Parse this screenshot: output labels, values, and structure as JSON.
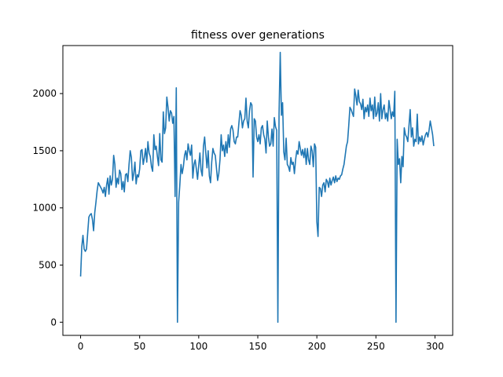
{
  "chart_data": {
    "type": "line",
    "title": "fitness over generations",
    "xlabel": "",
    "ylabel": "",
    "xlim": [
      -15,
      315
    ],
    "ylim": [
      -115,
      2420
    ],
    "xticks": [
      0,
      50,
      100,
      150,
      200,
      250,
      300
    ],
    "yticks": [
      0,
      500,
      1000,
      1500,
      2000
    ],
    "grid": false,
    "line_color": "#1f77b4",
    "series": [
      {
        "name": "",
        "points": [
          [
            0,
            400
          ],
          [
            1,
            660
          ],
          [
            2,
            760
          ],
          [
            3,
            640
          ],
          [
            4,
            620
          ],
          [
            5,
            640
          ],
          [
            6,
            780
          ],
          [
            7,
            920
          ],
          [
            8,
            940
          ],
          [
            9,
            950
          ],
          [
            10,
            900
          ],
          [
            11,
            800
          ],
          [
            12,
            960
          ],
          [
            13,
            1050
          ],
          [
            14,
            1150
          ],
          [
            15,
            1220
          ],
          [
            16,
            1200
          ],
          [
            17,
            1180
          ],
          [
            18,
            1160
          ],
          [
            19,
            1130
          ],
          [
            20,
            1180
          ],
          [
            21,
            1100
          ],
          [
            22,
            1200
          ],
          [
            23,
            1260
          ],
          [
            24,
            1120
          ],
          [
            25,
            1280
          ],
          [
            26,
            1200
          ],
          [
            27,
            1250
          ],
          [
            28,
            1460
          ],
          [
            29,
            1380
          ],
          [
            30,
            1180
          ],
          [
            31,
            1260
          ],
          [
            32,
            1210
          ],
          [
            33,
            1330
          ],
          [
            34,
            1300
          ],
          [
            35,
            1160
          ],
          [
            36,
            1230
          ],
          [
            37,
            1140
          ],
          [
            38,
            1290
          ],
          [
            39,
            1300
          ],
          [
            40,
            1230
          ],
          [
            41,
            1380
          ],
          [
            42,
            1500
          ],
          [
            43,
            1440
          ],
          [
            44,
            1240
          ],
          [
            45,
            1300
          ],
          [
            46,
            1400
          ],
          [
            47,
            1210
          ],
          [
            48,
            1290
          ],
          [
            49,
            1270
          ],
          [
            50,
            1340
          ],
          [
            51,
            1500
          ],
          [
            52,
            1510
          ],
          [
            53,
            1380
          ],
          [
            54,
            1440
          ],
          [
            55,
            1520
          ],
          [
            56,
            1400
          ],
          [
            57,
            1580
          ],
          [
            58,
            1480
          ],
          [
            59,
            1450
          ],
          [
            60,
            1360
          ],
          [
            61,
            1320
          ],
          [
            62,
            1640
          ],
          [
            63,
            1510
          ],
          [
            64,
            1540
          ],
          [
            65,
            1450
          ],
          [
            66,
            1370
          ],
          [
            67,
            1650
          ],
          [
            68,
            1420
          ],
          [
            69,
            1400
          ],
          [
            70,
            1840
          ],
          [
            71,
            1650
          ],
          [
            72,
            1700
          ],
          [
            73,
            1970
          ],
          [
            74,
            1880
          ],
          [
            75,
            1760
          ],
          [
            76,
            1850
          ],
          [
            77,
            1830
          ],
          [
            78,
            1740
          ],
          [
            79,
            1800
          ],
          [
            80,
            1100
          ],
          [
            81,
            2050
          ],
          [
            82,
            0
          ],
          [
            83,
            1050
          ],
          [
            84,
            1200
          ],
          [
            85,
            1380
          ],
          [
            86,
            1300
          ],
          [
            87,
            1360
          ],
          [
            88,
            1460
          ],
          [
            89,
            1500
          ],
          [
            90,
            1420
          ],
          [
            91,
            1560
          ],
          [
            92,
            1500
          ],
          [
            93,
            1460
          ],
          [
            94,
            1550
          ],
          [
            95,
            1260
          ],
          [
            96,
            1380
          ],
          [
            97,
            1420
          ],
          [
            98,
            1340
          ],
          [
            99,
            1250
          ],
          [
            100,
            1370
          ],
          [
            101,
            1480
          ],
          [
            102,
            1330
          ],
          [
            103,
            1280
          ],
          [
            104,
            1540
          ],
          [
            105,
            1620
          ],
          [
            106,
            1480
          ],
          [
            107,
            1350
          ],
          [
            108,
            1500
          ],
          [
            109,
            1280
          ],
          [
            110,
            1220
          ],
          [
            111,
            1400
          ],
          [
            112,
            1520
          ],
          [
            113,
            1480
          ],
          [
            114,
            1460
          ],
          [
            115,
            1350
          ],
          [
            116,
            1240
          ],
          [
            117,
            1300
          ],
          [
            118,
            1420
          ],
          [
            119,
            1640
          ],
          [
            120,
            1500
          ],
          [
            121,
            1550
          ],
          [
            122,
            1450
          ],
          [
            123,
            1580
          ],
          [
            124,
            1480
          ],
          [
            125,
            1640
          ],
          [
            126,
            1530
          ],
          [
            127,
            1690
          ],
          [
            128,
            1720
          ],
          [
            129,
            1680
          ],
          [
            130,
            1580
          ],
          [
            131,
            1560
          ],
          [
            132,
            1620
          ],
          [
            133,
            1620
          ],
          [
            134,
            1740
          ],
          [
            135,
            1850
          ],
          [
            136,
            1810
          ],
          [
            137,
            1700
          ],
          [
            138,
            1760
          ],
          [
            139,
            1780
          ],
          [
            140,
            1960
          ],
          [
            141,
            1760
          ],
          [
            142,
            1700
          ],
          [
            143,
            1850
          ],
          [
            144,
            1920
          ],
          [
            145,
            1900
          ],
          [
            146,
            1270
          ],
          [
            147,
            1780
          ],
          [
            148,
            1760
          ],
          [
            149,
            1620
          ],
          [
            150,
            1580
          ],
          [
            151,
            1640
          ],
          [
            152,
            1560
          ],
          [
            153,
            1700
          ],
          [
            154,
            1720
          ],
          [
            155,
            1640
          ],
          [
            156,
            1600
          ],
          [
            157,
            1480
          ],
          [
            158,
            1760
          ],
          [
            159,
            1620
          ],
          [
            160,
            1540
          ],
          [
            161,
            1560
          ],
          [
            162,
            1690
          ],
          [
            163,
            1540
          ],
          [
            164,
            1790
          ],
          [
            165,
            1710
          ],
          [
            166,
            1680
          ],
          [
            167,
            0
          ],
          [
            168,
            1820
          ],
          [
            169,
            2360
          ],
          [
            170,
            1810
          ],
          [
            171,
            1920
          ],
          [
            172,
            1490
          ],
          [
            173,
            1420
          ],
          [
            174,
            1610
          ],
          [
            175,
            1380
          ],
          [
            176,
            1360
          ],
          [
            177,
            1320
          ],
          [
            178,
            1440
          ],
          [
            179,
            1380
          ],
          [
            180,
            1400
          ],
          [
            181,
            1300
          ],
          [
            182,
            1420
          ],
          [
            183,
            1500
          ],
          [
            184,
            1470
          ],
          [
            185,
            1580
          ],
          [
            186,
            1520
          ],
          [
            187,
            1460
          ],
          [
            188,
            1510
          ],
          [
            189,
            1440
          ],
          [
            190,
            1520
          ],
          [
            191,
            1380
          ],
          [
            192,
            1520
          ],
          [
            193,
            1420
          ],
          [
            194,
            1380
          ],
          [
            195,
            1540
          ],
          [
            196,
            1500
          ],
          [
            197,
            1360
          ],
          [
            198,
            1560
          ],
          [
            199,
            1530
          ],
          [
            200,
            880
          ],
          [
            201,
            750
          ],
          [
            202,
            1180
          ],
          [
            203,
            1170
          ],
          [
            204,
            1100
          ],
          [
            205,
            1200
          ],
          [
            206,
            1220
          ],
          [
            207,
            1140
          ],
          [
            208,
            1250
          ],
          [
            209,
            1230
          ],
          [
            210,
            1180
          ],
          [
            211,
            1260
          ],
          [
            212,
            1200
          ],
          [
            213,
            1240
          ],
          [
            214,
            1270
          ],
          [
            215,
            1220
          ],
          [
            216,
            1280
          ],
          [
            217,
            1230
          ],
          [
            218,
            1260
          ],
          [
            219,
            1250
          ],
          [
            220,
            1280
          ],
          [
            221,
            1290
          ],
          [
            222,
            1340
          ],
          [
            223,
            1380
          ],
          [
            224,
            1460
          ],
          [
            225,
            1540
          ],
          [
            226,
            1580
          ],
          [
            227,
            1720
          ],
          [
            228,
            1880
          ],
          [
            229,
            1860
          ],
          [
            230,
            1830
          ],
          [
            231,
            1800
          ],
          [
            232,
            2040
          ],
          [
            233,
            1980
          ],
          [
            234,
            1900
          ],
          [
            235,
            2030
          ],
          [
            236,
            1930
          ],
          [
            237,
            1910
          ],
          [
            238,
            1860
          ],
          [
            239,
            1950
          ],
          [
            240,
            1780
          ],
          [
            241,
            1880
          ],
          [
            242,
            1840
          ],
          [
            243,
            1900
          ],
          [
            244,
            1800
          ],
          [
            245,
            1960
          ],
          [
            246,
            1850
          ],
          [
            247,
            1900
          ],
          [
            248,
            1780
          ],
          [
            249,
            1970
          ],
          [
            250,
            1800
          ],
          [
            251,
            1830
          ],
          [
            252,
            1920
          ],
          [
            253,
            1760
          ],
          [
            254,
            2000
          ],
          [
            255,
            1780
          ],
          [
            256,
            1860
          ],
          [
            257,
            1900
          ],
          [
            258,
            1780
          ],
          [
            259,
            1830
          ],
          [
            260,
            1760
          ],
          [
            261,
            1940
          ],
          [
            262,
            1860
          ],
          [
            263,
            1780
          ],
          [
            264,
            1840
          ],
          [
            265,
            1800
          ],
          [
            266,
            2020
          ],
          [
            267,
            0
          ],
          [
            268,
            1600
          ],
          [
            269,
            1380
          ],
          [
            270,
            1430
          ],
          [
            271,
            1220
          ],
          [
            272,
            1450
          ],
          [
            273,
            1360
          ],
          [
            274,
            1700
          ],
          [
            275,
            1640
          ],
          [
            276,
            1620
          ],
          [
            277,
            1580
          ],
          [
            278,
            1720
          ],
          [
            279,
            1860
          ],
          [
            280,
            1620
          ],
          [
            281,
            1700
          ],
          [
            282,
            1540
          ],
          [
            283,
            1600
          ],
          [
            284,
            1580
          ],
          [
            285,
            1820
          ],
          [
            286,
            1560
          ],
          [
            287,
            1620
          ],
          [
            288,
            1580
          ],
          [
            289,
            1630
          ],
          [
            290,
            1550
          ],
          [
            291,
            1600
          ],
          [
            292,
            1640
          ],
          [
            293,
            1660
          ],
          [
            294,
            1620
          ],
          [
            295,
            1680
          ],
          [
            296,
            1760
          ],
          [
            297,
            1700
          ],
          [
            298,
            1640
          ],
          [
            299,
            1540
          ]
        ]
      }
    ]
  }
}
